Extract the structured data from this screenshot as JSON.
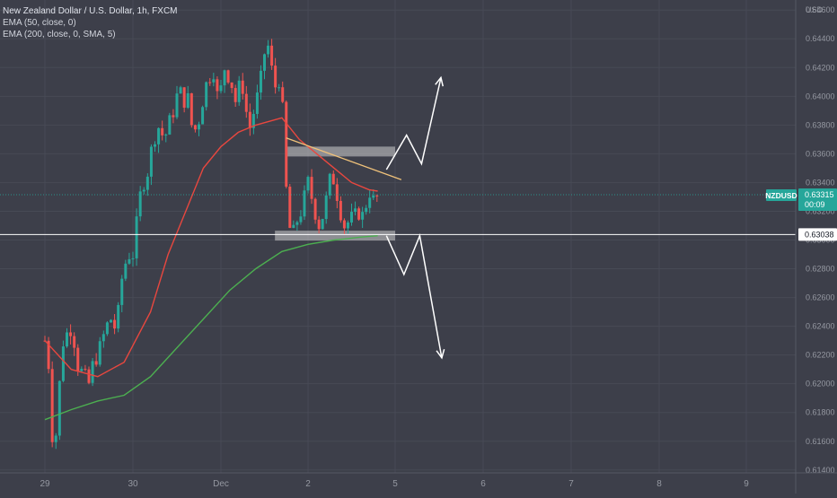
{
  "chart_data": {
    "type": "candlestick",
    "title": "New Zealand Dollar / U.S. Dollar, 1h, FXCM",
    "indicators": [
      "EMA (50, close, 0)",
      "EMA (200, close, 0, SMA, 5)"
    ],
    "currency": "USD",
    "symbol": "NZDUSD",
    "last_price": "0.63315",
    "countdown": "00:09",
    "level_label": "0.63038",
    "level_price": 0.63038,
    "ylim": [
      0.6138,
      0.6462
    ],
    "yticks": [
      "0.64600",
      "0.64400",
      "0.64200",
      "0.64000",
      "0.63800",
      "0.63600",
      "0.63400",
      "0.63200",
      "0.63000",
      "0.62800",
      "0.62600",
      "0.62400",
      "0.62200",
      "0.62000",
      "0.61800",
      "0.61600",
      "0.61400"
    ],
    "xticks": [
      "29",
      "30",
      "Dec",
      "2",
      "5",
      "6",
      "7",
      "8",
      "9"
    ],
    "grid": true,
    "colors": {
      "background": "#3d3f4a",
      "up": "#26a69a",
      "down": "#ef5350",
      "ema50": "#e8473f",
      "ema200": "#4caf50",
      "trendline": "#f0c27a",
      "level": "#ffffff",
      "zone": "#d0d0d0",
      "axis_text": "#9598a1",
      "badge": "#26a69a"
    },
    "close_path": [
      [
        0.0,
        0.623
      ],
      [
        0.05,
        0.621
      ],
      [
        0.08,
        0.6165
      ],
      [
        0.11,
        0.616
      ],
      [
        0.14,
        0.617
      ],
      [
        0.18,
        0.6215
      ],
      [
        0.21,
        0.623
      ],
      [
        0.24,
        0.624
      ],
      [
        0.27,
        0.6225
      ],
      [
        0.31,
        0.625
      ],
      [
        0.35,
        0.6215
      ],
      [
        0.4,
        0.621
      ],
      [
        0.45,
        0.6205
      ],
      [
        0.5,
        0.62
      ],
      [
        0.55,
        0.6215
      ],
      [
        0.6,
        0.622
      ],
      [
        0.65,
        0.623
      ],
      [
        0.7,
        0.624
      ],
      [
        0.75,
        0.6245
      ],
      [
        0.79,
        0.6242
      ],
      [
        0.81,
        0.6212
      ],
      [
        0.84,
        0.626
      ],
      [
        0.88,
        0.6275
      ],
      [
        0.92,
        0.6285
      ],
      [
        0.96,
        0.629
      ],
      [
        1.0,
        0.629
      ],
      [
        1.04,
        0.631
      ],
      [
        1.08,
        0.633
      ],
      [
        1.12,
        0.634
      ],
      [
        1.16,
        0.6345
      ],
      [
        1.2,
        0.636
      ],
      [
        1.24,
        0.637
      ],
      [
        1.28,
        0.638
      ],
      [
        1.32,
        0.6375
      ],
      [
        1.36,
        0.637
      ],
      [
        1.4,
        0.638
      ],
      [
        1.44,
        0.6385
      ],
      [
        1.48,
        0.6395
      ],
      [
        1.52,
        0.6405
      ],
      [
        1.56,
        0.64
      ],
      [
        1.6,
        0.6395
      ],
      [
        1.64,
        0.64
      ],
      [
        1.68,
        0.637
      ],
      [
        1.72,
        0.638
      ],
      [
        1.76,
        0.6385
      ],
      [
        1.8,
        0.64
      ],
      [
        1.84,
        0.641
      ],
      [
        1.88,
        0.6415
      ],
      [
        1.92,
        0.6418
      ],
      [
        1.96,
        0.64
      ],
      [
        2.0,
        0.6405
      ],
      [
        2.04,
        0.642
      ],
      [
        2.08,
        0.6415
      ],
      [
        2.12,
        0.641
      ],
      [
        2.16,
        0.6395
      ],
      [
        2.2,
        0.6405
      ],
      [
        2.24,
        0.641
      ],
      [
        2.28,
        0.6395
      ],
      [
        2.32,
        0.6375
      ],
      [
        2.36,
        0.6385
      ],
      [
        2.4,
        0.6395
      ],
      [
        2.44,
        0.6405
      ],
      [
        2.48,
        0.642
      ],
      [
        2.52,
        0.644
      ],
      [
        2.56,
        0.643
      ],
      [
        2.6,
        0.641
      ],
      [
        2.64,
        0.6405
      ],
      [
        2.68,
        0.6415
      ],
      [
        2.72,
        0.638
      ],
      [
        2.76,
        0.632
      ],
      [
        2.8,
        0.6305
      ],
      [
        2.84,
        0.6305
      ],
      [
        2.88,
        0.6315
      ],
      [
        2.92,
        0.632
      ],
      [
        2.96,
        0.633
      ],
      [
        3.0,
        0.634
      ],
      [
        3.04,
        0.633
      ],
      [
        3.08,
        0.632
      ],
      [
        3.12,
        0.631
      ],
      [
        3.16,
        0.6315
      ],
      [
        3.2,
        0.6325
      ],
      [
        3.24,
        0.634
      ],
      [
        3.28,
        0.6345
      ],
      [
        3.32,
        0.6335
      ],
      [
        3.36,
        0.6325
      ],
      [
        3.4,
        0.631
      ],
      [
        3.44,
        0.631
      ],
      [
        3.48,
        0.6315
      ],
      [
        3.52,
        0.6315
      ],
      [
        3.56,
        0.6318
      ],
      [
        3.6,
        0.632
      ],
      [
        3.64,
        0.6315
      ],
      [
        3.68,
        0.633
      ],
      [
        3.72,
        0.6335
      ],
      [
        3.76,
        0.6325
      ],
      [
        3.8,
        0.6331
      ]
    ],
    "ema50": [
      [
        0.0,
        0.623
      ],
      [
        0.3,
        0.621
      ],
      [
        0.6,
        0.6205
      ],
      [
        0.9,
        0.6215
      ],
      [
        1.2,
        0.625
      ],
      [
        1.4,
        0.629
      ],
      [
        1.6,
        0.632
      ],
      [
        1.8,
        0.635
      ],
      [
        2.0,
        0.6365
      ],
      [
        2.2,
        0.6375
      ],
      [
        2.4,
        0.638
      ],
      [
        2.7,
        0.6385
      ],
      [
        2.9,
        0.637
      ],
      [
        3.1,
        0.636
      ],
      [
        3.3,
        0.635
      ],
      [
        3.5,
        0.634
      ],
      [
        3.7,
        0.6335
      ],
      [
        3.8,
        0.6334
      ]
    ],
    "ema200": [
      [
        0.0,
        0.6175
      ],
      [
        0.3,
        0.6182
      ],
      [
        0.6,
        0.6188
      ],
      [
        0.9,
        0.6192
      ],
      [
        1.2,
        0.6205
      ],
      [
        1.5,
        0.6225
      ],
      [
        1.8,
        0.6245
      ],
      [
        2.1,
        0.6265
      ],
      [
        2.4,
        0.628
      ],
      [
        2.7,
        0.6292
      ],
      [
        3.0,
        0.6297
      ],
      [
        3.3,
        0.63
      ],
      [
        3.6,
        0.6302
      ],
      [
        3.8,
        0.6303
      ]
    ],
    "trendline": [
      [
        2.75,
        0.6371
      ],
      [
        4.07,
        0.6342
      ]
    ],
    "zones": [
      [
        2.75,
        4.0,
        0.6362,
        0.6365
      ],
      [
        2.62,
        4.0,
        0.63036,
        0.63065
      ]
    ],
    "scenario_up": [
      [
        3.9,
        0.6349
      ],
      [
        4.13,
        0.6373
      ],
      [
        4.3,
        0.6353
      ],
      [
        4.52,
        0.6413
      ]
    ],
    "scenario_down": [
      [
        3.9,
        0.6303
      ],
      [
        4.1,
        0.6276
      ],
      [
        4.28,
        0.6303
      ],
      [
        4.53,
        0.6218
      ]
    ]
  }
}
